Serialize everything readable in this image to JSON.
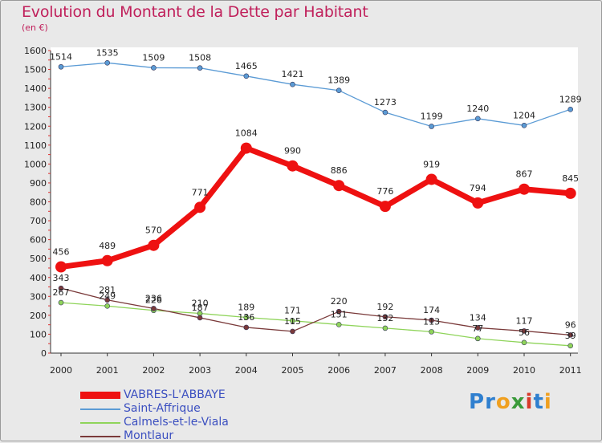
{
  "title": "Evolution du Montant de la Dette par Habitant",
  "subtitle": "(en €)",
  "brand": {
    "text": "Proxiti",
    "letter_colors": [
      "#2f7fcf",
      "#2f7fcf",
      "#f0a020",
      "#3a9a3a",
      "#d83a2a",
      "#2f7fcf",
      "#f0a020"
    ]
  },
  "chart_data": {
    "type": "line",
    "categories": [
      "2000",
      "2001",
      "2002",
      "2003",
      "2004",
      "2005",
      "2006",
      "2007",
      "2008",
      "2009",
      "2010",
      "2011"
    ],
    "ylim": [
      0,
      1600
    ],
    "yticks": [
      "0",
      "100",
      "200",
      "300",
      "400",
      "500",
      "600",
      "700",
      "800",
      "900",
      "1000",
      "1100",
      "1200",
      "1300",
      "1400",
      "1500",
      "1600"
    ],
    "grid": false,
    "legend_position": "bottom-left",
    "series": [
      {
        "name": "Saint-Affrique",
        "color": "#5b9bd5",
        "emphasis": false,
        "values": [
          1514,
          1535,
          1509,
          1508,
          1465,
          1421,
          1389,
          1273,
          1199,
          1240,
          1204,
          1289
        ]
      },
      {
        "name": "Calmels-et-le-Viala",
        "color": "#8fd45a",
        "emphasis": false,
        "values": [
          267,
          249,
          226,
          210,
          189,
          171,
          151,
          132,
          113,
          77,
          56,
          39
        ]
      },
      {
        "name": "Montlaur",
        "color": "#7a3a3a",
        "emphasis": false,
        "values": [
          343,
          281,
          236,
          187,
          136,
          115,
          220,
          192,
          174,
          134,
          117,
          96
        ]
      },
      {
        "name": "VABRES-L'ABBAYE",
        "color": "#ee1111",
        "emphasis": true,
        "values": [
          456,
          489,
          570,
          771,
          1084,
          990,
          886,
          776,
          919,
          794,
          867,
          845
        ]
      }
    ],
    "legend_order": [
      3,
      0,
      1,
      2
    ]
  }
}
